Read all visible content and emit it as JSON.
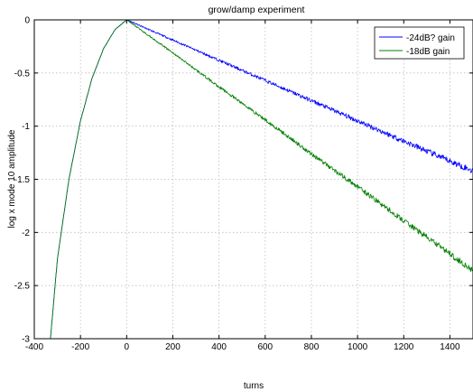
{
  "chart_data": {
    "type": "line",
    "title": "grow/damp experiment",
    "xlabel": "turns",
    "ylabel": "log x mode 10 amplitude",
    "xlim": [
      -400,
      1500
    ],
    "ylim": [
      -3,
      0
    ],
    "xticks": [
      -400,
      -200,
      0,
      200,
      400,
      600,
      800,
      1000,
      1200,
      1400
    ],
    "yticks": [
      0,
      -0.5,
      -1,
      -1.5,
      -2,
      -2.5,
      -3
    ],
    "xtick_labels": [
      "-400",
      "-200",
      "0",
      "200",
      "400",
      "600",
      "800",
      "1000",
      "1200",
      "1400"
    ],
    "ytick_labels": [
      "0",
      "-0.5",
      "-1",
      "-1.5",
      "-2",
      "-2.5",
      "-3"
    ],
    "grid": true,
    "legend_position": "top-right",
    "series": [
      {
        "name": "-24dB? gain",
        "color": "#0000ff",
        "x": [
          -330,
          -300,
          -250,
          -200,
          -150,
          -100,
          -50,
          0,
          200,
          400,
          600,
          800,
          1000,
          1200,
          1400,
          1500
        ],
        "y": [
          -3.0,
          -2.25,
          -1.5,
          -0.95,
          -0.55,
          -0.27,
          -0.09,
          0,
          -0.19,
          -0.38,
          -0.57,
          -0.76,
          -0.95,
          -1.14,
          -1.33,
          -1.42
        ]
      },
      {
        "name": "-18dB gain",
        "color": "#008000",
        "x": [
          -330,
          -300,
          -250,
          -200,
          -150,
          -100,
          -50,
          0,
          200,
          400,
          600,
          800,
          1000,
          1200,
          1400,
          1500
        ],
        "y": [
          -3.0,
          -2.25,
          -1.5,
          -0.95,
          -0.55,
          -0.27,
          -0.09,
          0,
          -0.31,
          -0.63,
          -0.94,
          -1.26,
          -1.57,
          -1.89,
          -2.2,
          -2.36
        ]
      }
    ]
  }
}
